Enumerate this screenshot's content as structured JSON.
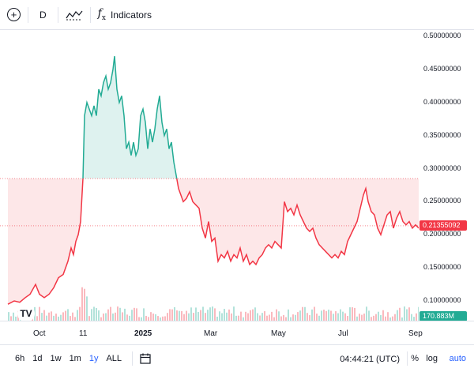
{
  "toolbar": {
    "add_icon": "circle-plus-icon",
    "interval": "D",
    "chart_style_icon": "chart-style-icon",
    "indicators_icon": "fx-icon",
    "indicators_label": "Indicators"
  },
  "chart_data": {
    "type": "area",
    "baseline": 0.285,
    "colors": {
      "above": "#22ab94",
      "below": "#f23645",
      "up_volume": "#22ab94",
      "down_volume": "#f23645"
    },
    "current_price": "0.21355092",
    "volume_label": "170.883M",
    "price_ticks": [
      "0.50000000",
      "0.45000000",
      "0.40000000",
      "0.35000000",
      "0.30000000",
      "0.25000000",
      "0.20000000",
      "0.15000000",
      "0.10000000"
    ],
    "time_ticks": [
      "Oct",
      "11",
      "2025",
      "Mar",
      "May",
      "Jul",
      "Sep"
    ],
    "grid": false
  },
  "bottom": {
    "ranges": [
      "6h",
      "1d",
      "1w",
      "1m",
      "1y",
      "ALL"
    ],
    "active_range": "1y",
    "calendar_icon": "calendar-icon",
    "clock": "04:44:21 (UTC)",
    "percent": "%",
    "log": "log",
    "auto": "auto"
  }
}
